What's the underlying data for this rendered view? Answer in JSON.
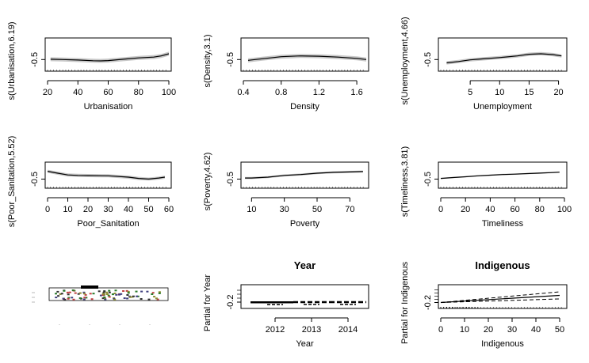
{
  "chart_data": [
    {
      "type": "line",
      "xlabel": "Urbanisation",
      "ylabel": "s(Urbanisation,6.19)",
      "xticks": [
        20,
        40,
        60,
        80,
        100
      ],
      "xlim": [
        20,
        100
      ],
      "yticks": [
        "-0.5"
      ],
      "ylim": [
        -1.2,
        0.8
      ],
      "yref": -0.5,
      "x": [
        22,
        30,
        40,
        50,
        55,
        60,
        70,
        80,
        90,
        95,
        100
      ],
      "y": [
        -0.48,
        -0.5,
        -0.53,
        -0.57,
        -0.58,
        -0.56,
        -0.48,
        -0.4,
        -0.35,
        -0.28,
        -0.15
      ],
      "band": 0.12
    },
    {
      "type": "line",
      "xlabel": "Density",
      "ylabel": "s(Density,3.1)",
      "xticks": [
        "0.4",
        "0.8",
        "1.2",
        "1.6"
      ],
      "xlim": [
        0.4,
        1.7
      ],
      "yticks": [
        "-0.5"
      ],
      "ylim": [
        -1.2,
        0.8
      ],
      "yref": -0.5,
      "x": [
        0.45,
        0.6,
        0.8,
        1.0,
        1.2,
        1.4,
        1.6,
        1.7
      ],
      "y": [
        -0.55,
        -0.45,
        -0.33,
        -0.28,
        -0.3,
        -0.35,
        -0.43,
        -0.5
      ],
      "band": 0.12
    },
    {
      "type": "line",
      "xlabel": "Unemployment",
      "ylabel": "s(Unemployment,4.66)",
      "xticks": [
        5,
        10,
        15,
        20
      ],
      "xlim": [
        0,
        21
      ],
      "yticks": [
        "-0.5"
      ],
      "ylim": [
        -1.2,
        0.8
      ],
      "yref": -0.5,
      "x": [
        1,
        3,
        5,
        7,
        10,
        13,
        15,
        17,
        19,
        20.5
      ],
      "y": [
        -0.7,
        -0.62,
        -0.52,
        -0.46,
        -0.38,
        -0.28,
        -0.18,
        -0.15,
        -0.2,
        -0.28
      ],
      "band": 0.1
    },
    {
      "type": "line",
      "xlabel": "Poor_Sanitation",
      "ylabel": "s(Poor_Sanitation,5.52)",
      "xticks": [
        0,
        10,
        20,
        30,
        40,
        50,
        60
      ],
      "xlim": [
        0,
        60
      ],
      "yticks": [
        "-0.5"
      ],
      "ylim": [
        -1.2,
        0.8
      ],
      "yref": -0.5,
      "x": [
        0,
        5,
        10,
        15,
        20,
        30,
        40,
        45,
        50,
        55,
        58
      ],
      "y": [
        0.1,
        -0.05,
        -0.18,
        -0.22,
        -0.23,
        -0.25,
        -0.35,
        -0.45,
        -0.5,
        -0.42,
        -0.35
      ],
      "band": 0.12
    },
    {
      "type": "line",
      "xlabel": "Poverty",
      "ylabel": "s(Poverty,4.62)",
      "xticks": [
        10,
        30,
        50,
        70
      ],
      "xlim": [
        5,
        80
      ],
      "yticks": [
        "-0.5"
      ],
      "ylim": [
        -1.2,
        0.8
      ],
      "yref": -0.5,
      "x": [
        6,
        10,
        20,
        30,
        40,
        50,
        60,
        70,
        78
      ],
      "y": [
        -0.42,
        -0.42,
        -0.35,
        -0.22,
        -0.15,
        -0.05,
        0.02,
        0.05,
        0.08
      ],
      "band": 0.08
    },
    {
      "type": "line",
      "xlabel": "Timeliness",
      "ylabel": "s(Timeliness,3.81)",
      "xticks": [
        0,
        20,
        40,
        60,
        80,
        100
      ],
      "xlim": [
        0,
        100
      ],
      "yticks": [
        "-0.5"
      ],
      "ylim": [
        -1.2,
        0.8
      ],
      "yref": -0.5,
      "x": [
        0,
        10,
        20,
        30,
        40,
        50,
        60,
        70,
        80,
        90,
        96
      ],
      "y": [
        -0.45,
        -0.38,
        -0.32,
        -0.25,
        -0.2,
        -0.15,
        -0.12,
        -0.08,
        -0.04,
        0.0,
        0.03
      ],
      "band": 0.05
    },
    {
      "type": "map",
      "description_visible": false
    },
    {
      "type": "bar",
      "title": "Year",
      "xlabel": "Year",
      "ylabel": "Partial for Year",
      "categories": [
        "2012",
        "2013",
        "2014"
      ],
      "yticks": [
        "-0.2"
      ],
      "values": [
        -0.21,
        -0.2,
        -0.2
      ],
      "ylim": [
        -0.3,
        0.1
      ]
    },
    {
      "type": "line",
      "title": "Indigenous",
      "xlabel": "Indigenous",
      "ylabel": "Partial for Indigenous",
      "xticks": [
        0,
        10,
        20,
        30,
        40,
        50
      ],
      "xlim": [
        0,
        52
      ],
      "yticks": [
        "-0.2"
      ],
      "ylim": [
        -0.3,
        0.1
      ],
      "x": [
        0,
        50
      ],
      "y": [
        -0.2,
        -0.08
      ],
      "lower": [
        -0.2,
        -0.14
      ],
      "upper": [
        -0.2,
        -0.02
      ]
    }
  ]
}
